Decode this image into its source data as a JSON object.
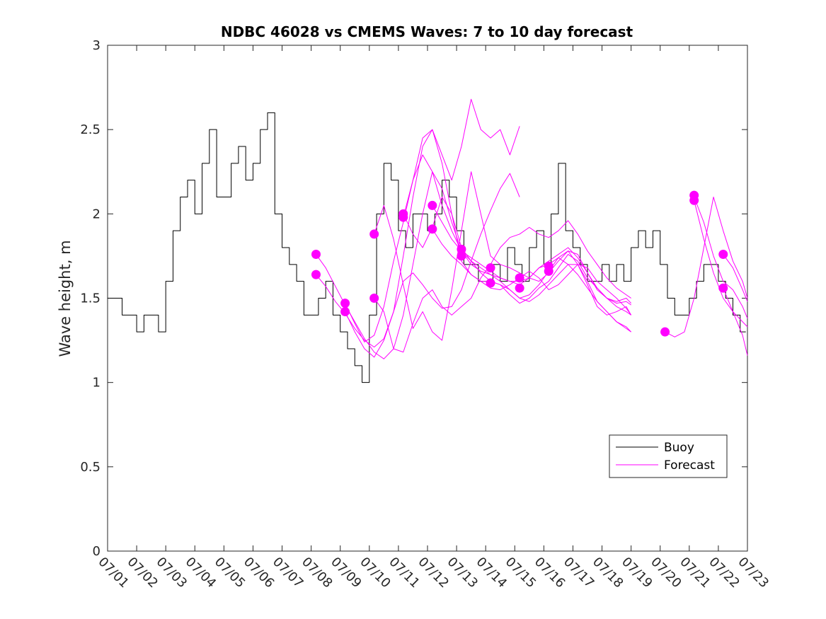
{
  "chart_data": {
    "type": "line",
    "title": "NDBC 46028 vs CMEMS Waves: 7 to 10 day forecast",
    "xlabel": "",
    "ylabel": "Wave height, m",
    "x_tick_labels": [
      "07/01",
      "07/02",
      "07/03",
      "07/04",
      "07/05",
      "07/06",
      "07/07",
      "07/08",
      "07/09",
      "07/10",
      "07/11",
      "07/12",
      "07/13",
      "07/14",
      "07/15",
      "07/16",
      "07/17",
      "07/18",
      "07/19",
      "07/20",
      "07/21",
      "07/22",
      "07/23"
    ],
    "y_tick_labels": [
      "0",
      "0.5",
      "1",
      "1.5",
      "2",
      "2.5",
      "3"
    ],
    "xlim": [
      "07/01",
      "07/23"
    ],
    "ylim": [
      0,
      3
    ],
    "grid": false,
    "legend_position": "bottom-right",
    "legend": [
      "Buoy",
      "Forecast"
    ],
    "colors": {
      "buoy": "#000000",
      "forecast": "#ff00ff"
    },
    "series": [
      {
        "name": "Buoy",
        "style": "line",
        "x": [
          "07/01 00:00",
          "07/01 06:00",
          "07/01 12:00",
          "07/01 18:00",
          "07/02 00:00",
          "07/02 06:00",
          "07/02 12:00",
          "07/02 18:00",
          "07/03 00:00",
          "07/03 06:00",
          "07/03 12:00",
          "07/03 18:00",
          "07/04 00:00",
          "07/04 06:00",
          "07/04 12:00",
          "07/04 18:00",
          "07/05 00:00",
          "07/05 06:00",
          "07/05 12:00",
          "07/05 18:00",
          "07/06 00:00",
          "07/06 06:00",
          "07/06 12:00",
          "07/06 18:00",
          "07/07 00:00",
          "07/07 06:00",
          "07/07 12:00",
          "07/07 18:00",
          "07/08 00:00",
          "07/08 06:00",
          "07/08 12:00",
          "07/08 18:00",
          "07/09 00:00",
          "07/09 06:00",
          "07/09 12:00",
          "07/09 18:00",
          "07/10 00:00",
          "07/10 06:00",
          "07/10 12:00",
          "07/10 18:00",
          "07/11 00:00",
          "07/11 06:00",
          "07/11 12:00",
          "07/11 18:00",
          "07/12 00:00",
          "07/12 06:00",
          "07/12 12:00",
          "07/12 18:00",
          "07/13 00:00",
          "07/13 06:00",
          "07/13 12:00",
          "07/13 18:00",
          "07/14 00:00",
          "07/14 06:00",
          "07/14 12:00",
          "07/14 18:00",
          "07/15 00:00",
          "07/15 06:00",
          "07/15 12:00",
          "07/15 18:00",
          "07/16 00:00",
          "07/16 06:00",
          "07/16 12:00",
          "07/16 18:00",
          "07/17 00:00",
          "07/17 06:00",
          "07/17 12:00",
          "07/17 18:00",
          "07/18 00:00",
          "07/18 06:00",
          "07/18 12:00",
          "07/18 18:00",
          "07/19 00:00",
          "07/19 06:00",
          "07/19 12:00",
          "07/19 18:00",
          "07/20 00:00",
          "07/20 06:00",
          "07/20 12:00",
          "07/20 18:00",
          "07/21 00:00",
          "07/21 06:00",
          "07/21 12:00",
          "07/21 18:00",
          "07/22 00:00",
          "07/22 06:00",
          "07/22 12:00",
          "07/22 18:00"
        ],
        "y": [
          1.5,
          1.5,
          1.4,
          1.4,
          1.3,
          1.4,
          1.4,
          1.3,
          1.6,
          1.9,
          2.1,
          2.2,
          2.0,
          2.3,
          2.5,
          2.1,
          2.1,
          2.3,
          2.4,
          2.2,
          2.3,
          2.5,
          2.6,
          2.0,
          1.8,
          1.7,
          1.6,
          1.4,
          1.4,
          1.5,
          1.6,
          1.4,
          1.3,
          1.2,
          1.1,
          1.0,
          1.4,
          2.0,
          2.3,
          2.2,
          1.9,
          1.8,
          2.0,
          2.0,
          1.9,
          2.0,
          2.2,
          2.1,
          1.9,
          1.7,
          1.7,
          1.6,
          1.6,
          1.7,
          1.6,
          1.8,
          1.7,
          1.6,
          1.8,
          1.9,
          1.7,
          2.0,
          2.3,
          1.9,
          1.8,
          1.7,
          1.6,
          1.6,
          1.7,
          1.6,
          1.7,
          1.6,
          1.8,
          1.9,
          1.8,
          1.9,
          1.7,
          1.5,
          1.4,
          1.4,
          1.5,
          1.6,
          1.7,
          1.7,
          1.6,
          1.5,
          1.4,
          1.3
        ]
      },
      {
        "name": "Forecast",
        "style": "line",
        "x": [
          "07/08 04:00",
          "07/08 12:00",
          "07/08 20:00",
          "07/09 04:00",
          "07/09 12:00",
          "07/09 20:00",
          "07/10 04:00",
          "07/10 12:00",
          "07/10 20:00",
          "07/11 04:00",
          "07/11 12:00",
          "07/11 20:00",
          "07/12 04:00",
          "07/12 12:00",
          "07/12 20:00",
          "07/13 04:00",
          "07/13 12:00",
          "07/13 20:00",
          "07/14 04:00",
          "07/14 12:00",
          "07/14 20:00",
          "07/15 04:00",
          "07/15 12:00",
          "07/15 20:00",
          "07/16 04:00",
          "07/16 12:00",
          "07/16 20:00",
          "07/17 04:00",
          "07/17 12:00",
          "07/17 20:00",
          "07/18 04:00",
          "07/18 12:00",
          "07/18 20:00",
          "07/19 00:00"
        ],
        "y": [
          1.64,
          1.57,
          1.48,
          1.41,
          1.32,
          1.25,
          1.21,
          1.26,
          1.42,
          1.75,
          2.1,
          2.4,
          2.5,
          2.3,
          2.0,
          1.72,
          1.64,
          1.6,
          1.6,
          1.58,
          1.52,
          1.47,
          1.5,
          1.56,
          1.6,
          1.68,
          1.76,
          1.72,
          1.62,
          1.56,
          1.5,
          1.48,
          1.5,
          1.47
        ]
      },
      {
        "name": "Forecast",
        "style": "line",
        "x": [
          "07/08 04:00",
          "07/08 12:00",
          "07/08 20:00",
          "07/09 04:00",
          "07/09 12:00",
          "07/09 20:00",
          "07/10 04:00",
          "07/10 12:00",
          "07/10 20:00",
          "07/11 04:00",
          "07/11 12:00",
          "07/11 20:00",
          "07/12 04:00",
          "07/12 12:00",
          "07/12 20:00",
          "07/13 04:00",
          "07/13 12:00",
          "07/13 20:00",
          "07/14 04:00",
          "07/14 12:00",
          "07/14 20:00",
          "07/15 04:00",
          "07/15 12:00",
          "07/15 20:00",
          "07/16 04:00",
          "07/16 12:00",
          "07/16 20:00",
          "07/17 04:00",
          "07/17 12:00",
          "07/17 20:00",
          "07/18 04:00",
          "07/18 12:00",
          "07/18 20:00",
          "07/19 00:00"
        ],
        "y": [
          1.76,
          1.68,
          1.57,
          1.46,
          1.36,
          1.26,
          1.18,
          1.14,
          1.2,
          1.4,
          1.7,
          2.0,
          2.25,
          2.15,
          1.95,
          1.78,
          1.7,
          1.66,
          1.64,
          1.6,
          1.55,
          1.5,
          1.48,
          1.52,
          1.58,
          1.64,
          1.7,
          1.7,
          1.6,
          1.48,
          1.42,
          1.36,
          1.33,
          1.3
        ]
      },
      {
        "name": "Forecast",
        "style": "line",
        "x": [
          "07/09 04:00",
          "07/09 12:00",
          "07/09 20:00",
          "07/10 04:00",
          "07/10 12:00",
          "07/10 20:00",
          "07/11 04:00",
          "07/11 12:00",
          "07/11 20:00",
          "07/12 04:00",
          "07/12 12:00",
          "07/12 20:00",
          "07/13 04:00",
          "07/13 12:00",
          "07/13 20:00",
          "07/14 04:00",
          "07/14 12:00",
          "07/14 20:00",
          "07/15 04:00"
        ],
        "y": [
          1.47,
          1.35,
          1.24,
          1.28,
          1.45,
          1.72,
          1.95,
          2.2,
          2.45,
          2.5,
          2.35,
          2.2,
          2.4,
          2.68,
          2.5,
          2.45,
          2.5,
          2.35,
          2.52
        ]
      },
      {
        "name": "Forecast",
        "style": "line",
        "x": [
          "07/09 04:00",
          "07/09 12:00",
          "07/09 20:00",
          "07/10 04:00",
          "07/10 12:00",
          "07/10 20:00",
          "07/11 04:00",
          "07/11 12:00",
          "07/11 20:00",
          "07/12 04:00",
          "07/12 12:00",
          "07/12 20:00",
          "07/13 04:00",
          "07/13 12:00",
          "07/13 20:00",
          "07/14 04:00",
          "07/14 12:00",
          "07/14 20:00",
          "07/15 04:00"
        ],
        "y": [
          1.42,
          1.3,
          1.2,
          1.15,
          1.25,
          1.42,
          1.6,
          1.65,
          1.58,
          1.5,
          1.44,
          1.45,
          1.55,
          1.72,
          1.88,
          2.02,
          2.15,
          2.24,
          2.1
        ]
      },
      {
        "name": "Forecast",
        "style": "line",
        "x": [
          "07/10 04:00",
          "07/10 12:00",
          "07/10 20:00",
          "07/11 04:00",
          "07/11 12:00",
          "07/11 20:00",
          "07/12 04:00",
          "07/12 12:00",
          "07/12 20:00",
          "07/13 04:00",
          "07/13 12:00",
          "07/13 20:00",
          "07/14 04:00",
          "07/14 12:00",
          "07/14 20:00",
          "07/15 04:00",
          "07/15 12:00",
          "07/15 20:00",
          "07/16 04:00",
          "07/16 12:00",
          "07/16 20:00",
          "07/17 04:00",
          "07/17 12:00",
          "07/17 20:00",
          "07/18 04:00",
          "07/18 12:00",
          "07/18 20:00",
          "07/19 00:00"
        ],
        "y": [
          1.88,
          2.05,
          1.85,
          1.58,
          1.32,
          1.42,
          1.3,
          1.25,
          1.55,
          1.9,
          2.25,
          2.0,
          1.75,
          1.7,
          1.68,
          1.65,
          1.62,
          1.6,
          1.65,
          1.72,
          1.78,
          1.76,
          1.65,
          1.55,
          1.5,
          1.45,
          1.42,
          1.4
        ]
      },
      {
        "name": "Forecast",
        "style": "line",
        "x": [
          "07/10 04:00",
          "07/10 12:00",
          "07/10 20:00",
          "07/11 04:00",
          "07/11 12:00",
          "07/11 20:00",
          "07/12 04:00",
          "07/12 12:00",
          "07/12 20:00",
          "07/13 04:00",
          "07/13 12:00",
          "07/13 20:00",
          "07/14 04:00",
          "07/14 12:00",
          "07/14 20:00",
          "07/15 04:00",
          "07/15 12:00",
          "07/15 20:00",
          "07/16 04:00",
          "07/16 12:00",
          "07/16 20:00",
          "07/17 04:00",
          "07/17 12:00",
          "07/17 20:00",
          "07/18 04:00",
          "07/18 12:00",
          "07/18 20:00",
          "07/19 00:00"
        ],
        "y": [
          1.5,
          1.42,
          1.2,
          1.18,
          1.35,
          1.5,
          1.55,
          1.45,
          1.4,
          1.45,
          1.5,
          1.62,
          1.7,
          1.8,
          1.86,
          1.88,
          1.92,
          1.88,
          1.86,
          1.9,
          1.96,
          1.88,
          1.78,
          1.7,
          1.62,
          1.56,
          1.52,
          1.5
        ]
      },
      {
        "name": "Forecast",
        "style": "line",
        "x": [
          "07/11 04:00",
          "07/11 12:00",
          "07/11 20:00",
          "07/12 04:00",
          "07/12 12:00",
          "07/12 20:00",
          "07/13 04:00",
          "07/13 12:00",
          "07/13 20:00",
          "07/14 04:00",
          "07/14 12:00",
          "07/14 20:00",
          "07/15 04:00",
          "07/15 12:00",
          "07/15 20:00",
          "07/16 04:00",
          "07/16 12:00",
          "07/16 20:00",
          "07/17 04:00",
          "07/17 12:00",
          "07/17 20:00",
          "07/18 04:00",
          "07/18 12:00",
          "07/18 20:00",
          "07/19 00:00"
        ],
        "y": [
          2.0,
          1.88,
          1.8,
          1.92,
          2.1,
          2.0,
          1.8,
          1.72,
          1.65,
          1.6,
          1.58,
          1.55,
          1.5,
          1.52,
          1.58,
          1.66,
          1.74,
          1.78,
          1.7,
          1.58,
          1.45,
          1.4,
          1.42,
          1.45,
          1.4
        ]
      },
      {
        "name": "Forecast",
        "style": "line",
        "x": [
          "07/11 04:00",
          "07/11 12:00",
          "07/11 20:00",
          "07/12 04:00",
          "07/12 12:00",
          "07/12 20:00",
          "07/13 04:00",
          "07/13 12:00",
          "07/13 20:00",
          "07/14 04:00",
          "07/14 12:00",
          "07/14 20:00",
          "07/15 04:00",
          "07/15 12:00",
          "07/15 20:00",
          "07/16 04:00",
          "07/16 12:00",
          "07/16 20:00",
          "07/17 04:00",
          "07/17 12:00",
          "07/17 20:00",
          "07/18 04:00",
          "07/18 12:00",
          "07/18 20:00",
          "07/19 00:00"
        ],
        "y": [
          1.98,
          2.2,
          2.35,
          2.25,
          2.05,
          1.9,
          1.78,
          1.74,
          1.7,
          1.66,
          1.62,
          1.6,
          1.58,
          1.62,
          1.68,
          1.7,
          1.74,
          1.7,
          1.64,
          1.56,
          1.48,
          1.42,
          1.36,
          1.32,
          1.3
        ]
      },
      {
        "name": "Forecast",
        "style": "line",
        "x": [
          "07/12 04:00",
          "07/12 12:00",
          "07/12 20:00",
          "07/13 04:00",
          "07/13 12:00",
          "07/13 20:00",
          "07/14 04:00",
          "07/14 12:00",
          "07/14 20:00",
          "07/15 04:00",
          "07/15 12:00",
          "07/15 20:00",
          "07/16 04:00",
          "07/16 12:00",
          "07/16 20:00",
          "07/17 04:00",
          "07/17 12:00",
          "07/17 20:00",
          "07/18 04:00",
          "07/18 12:00",
          "07/18 20:00",
          "07/19 00:00"
        ],
        "y": [
          2.05,
          1.95,
          1.85,
          1.78,
          1.72,
          1.68,
          1.64,
          1.62,
          1.6,
          1.6,
          1.62,
          1.68,
          1.72,
          1.76,
          1.8,
          1.74,
          1.65,
          1.56,
          1.5,
          1.47,
          1.48,
          1.46
        ]
      },
      {
        "name": "Forecast",
        "style": "line",
        "x": [
          "07/12 04:00",
          "07/12 12:00",
          "07/12 20:00",
          "07/13 04:00",
          "07/13 12:00",
          "07/13 20:00",
          "07/14 04:00",
          "07/14 12:00",
          "07/14 20:00",
          "07/15 04:00",
          "07/15 12:00",
          "07/15 20:00",
          "07/16 04:00",
          "07/16 12:00",
          "07/16 20:00",
          "07/17 04:00",
          "07/17 12:00",
          "07/17 20:00",
          "07/18 04:00",
          "07/18 12:00",
          "07/18 20:00",
          "07/19 00:00"
        ],
        "y": [
          1.91,
          1.82,
          1.75,
          1.7,
          1.64,
          1.6,
          1.56,
          1.55,
          1.58,
          1.62,
          1.66,
          1.62,
          1.55,
          1.58,
          1.64,
          1.7,
          1.68,
          1.6,
          1.55,
          1.5,
          1.44,
          1.4
        ]
      },
      {
        "name": "Forecast",
        "style": "line",
        "x": [
          "07/20 04:00",
          "07/20 12:00",
          "07/20 20:00",
          "07/21 04:00",
          "07/21 12:00",
          "07/21 20:00",
          "07/22 04:00",
          "07/22 12:00",
          "07/22 20:00",
          "07/23 00:00"
        ],
        "y": [
          1.3,
          1.27,
          1.3,
          1.5,
          1.8,
          2.1,
          1.9,
          1.72,
          1.6,
          1.5
        ]
      },
      {
        "name": "Forecast",
        "style": "line",
        "x": [
          "07/21 04:00",
          "07/21 12:00",
          "07/21 20:00",
          "07/22 04:00",
          "07/22 12:00",
          "07/22 20:00",
          "07/23 00:00"
        ],
        "y": [
          2.1,
          1.95,
          1.75,
          1.6,
          1.55,
          1.45,
          1.38
        ]
      },
      {
        "name": "Forecast",
        "style": "line",
        "x": [
          "07/21 04:00",
          "07/21 12:00",
          "07/21 20:00",
          "07/22 04:00",
          "07/22 12:00",
          "07/22 20:00",
          "07/23 00:00"
        ],
        "y": [
          2.08,
          1.85,
          1.65,
          1.5,
          1.42,
          1.36,
          1.33
        ]
      },
      {
        "name": "Forecast",
        "style": "line",
        "x": [
          "07/22 04:00",
          "07/22 12:00",
          "07/22 20:00",
          "07/23 00:00"
        ],
        "y": [
          1.76,
          1.68,
          1.55,
          1.48
        ]
      },
      {
        "name": "Forecast",
        "style": "line",
        "x": [
          "07/22 04:00",
          "07/22 12:00",
          "07/22 20:00",
          "07/23 00:00"
        ],
        "y": [
          1.56,
          1.42,
          1.28,
          1.16
        ]
      },
      {
        "name": "Forecast",
        "style": "markers",
        "x": [
          "07/08 04:00",
          "07/08 04:00",
          "07/09 04:00",
          "07/09 04:00",
          "07/10 04:00",
          "07/10 04:00",
          "07/11 04:00",
          "07/11 04:00",
          "07/12 04:00",
          "07/12 04:00",
          "07/13 04:00",
          "07/13 04:00",
          "07/14 04:00",
          "07/14 04:00",
          "07/15 04:00",
          "07/15 04:00",
          "07/16 04:00",
          "07/16 04:00",
          "07/20 04:00",
          "07/21 04:00",
          "07/21 04:00",
          "07/22 04:00",
          "07/22 04:00"
        ],
        "y": [
          1.76,
          1.64,
          1.47,
          1.42,
          1.88,
          1.5,
          2.0,
          1.98,
          2.05,
          1.91,
          1.79,
          1.75,
          1.68,
          1.59,
          1.62,
          1.56,
          1.69,
          1.66,
          1.3,
          2.11,
          2.08,
          1.76,
          1.56
        ]
      }
    ]
  }
}
